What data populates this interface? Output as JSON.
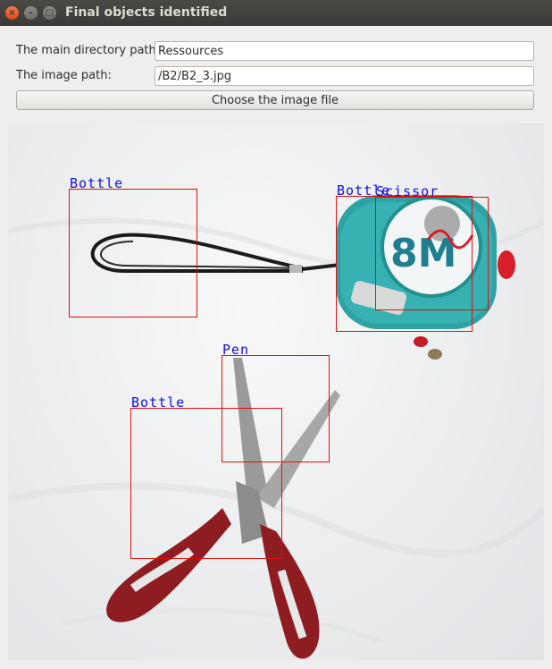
{
  "window": {
    "title": "Final objects identified",
    "close_glyph": "×",
    "min_glyph": "–",
    "max_glyph": "□"
  },
  "form": {
    "dir_label": "The main directory path:",
    "dir_value": "Ressources",
    "image_label": "The image path:",
    "image_value": "/B2/B2_3.jpg",
    "choose_button": "Choose the image file"
  },
  "detections": [
    {
      "label": "Bottle"
    },
    {
      "label": "Bottle"
    },
    {
      "label": "Scissor"
    },
    {
      "label": "Pen"
    },
    {
      "label": "Bottle"
    }
  ],
  "tape_measure": {
    "big_text": "8M"
  },
  "colors": {
    "box": "#e01010",
    "label": "#1010e8",
    "tape_body": "#2fa3a3",
    "scissor_handle": "#8e1d22"
  }
}
